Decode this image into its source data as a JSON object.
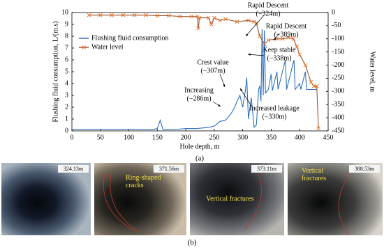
{
  "chart_data": {
    "type": "line",
    "x_label": "Hole depth, m",
    "y_label": "Flushing fluid consumption, L/(m.s)",
    "y2_label": "Water level, m",
    "xlim": [
      0,
      450
    ],
    "xticks": [
      0,
      50,
      100,
      150,
      200,
      250,
      300,
      350,
      400,
      450
    ],
    "ylim": [
      0,
      10
    ],
    "yticks": [
      0,
      1,
      2,
      3,
      4,
      5,
      6,
      7,
      8,
      9,
      10
    ],
    "y2lim": [
      -450,
      0
    ],
    "y2ticks": [
      0,
      -50,
      -100,
      -150,
      -200,
      -250,
      -300,
      -350,
      -400,
      -450
    ],
    "legend": "upper left",
    "series": [
      {
        "name": "Flushing fluid consumption",
        "color": "#2e6fc0",
        "marker": "none",
        "x": [
          0,
          20,
          40,
          60,
          80,
          100,
          120,
          140,
          150,
          155,
          160,
          180,
          200,
          220,
          240,
          250,
          260,
          270,
          280,
          286,
          290,
          295,
          300,
          305,
          307,
          310,
          315,
          320,
          324,
          328,
          330,
          332,
          334,
          336,
          338,
          340,
          345,
          350,
          352,
          360,
          362,
          375,
          377,
          390,
          392,
          400,
          402,
          410,
          412,
          430
        ],
        "values": [
          0.1,
          0.1,
          0.1,
          0.1,
          0.1,
          0.1,
          0.1,
          0.1,
          0.2,
          0.9,
          0.1,
          0.1,
          0.2,
          0.2,
          0.3,
          0.4,
          0.8,
          0.9,
          1.5,
          2.0,
          2.5,
          3.0,
          2.0,
          3.5,
          4.5,
          1.0,
          2.8,
          0.3,
          0.5,
          3.5,
          3.8,
          2.5,
          8.6,
          3.0,
          8.5,
          3.2,
          3.5,
          4.8,
          3.4,
          5.0,
          3.5,
          6.0,
          3.5,
          6.0,
          3.5,
          4.0,
          3.5,
          5.0,
          3.5,
          3.5
        ]
      },
      {
        "name": "Water level",
        "color": "#a0522d",
        "marker_color": "#e8742a",
        "marker": "x",
        "axis": "y2",
        "x": [
          30,
          50,
          70,
          90,
          110,
          130,
          150,
          170,
          190,
          210,
          220,
          222,
          224,
          240,
          245,
          250,
          260,
          270,
          290,
          310,
          320,
          324,
          330,
          338,
          345,
          360,
          370,
          380,
          389,
          395,
          400,
          410,
          420,
          425,
          430,
          433
        ],
        "values": [
          -10,
          -10,
          -10,
          -10,
          -10,
          -10,
          -12,
          -12,
          -15,
          -15,
          -15,
          -60,
          -20,
          -20,
          -45,
          -20,
          -30,
          -25,
          -35,
          -30,
          -35,
          -40,
          -90,
          -120,
          -105,
          -100,
          -100,
          -95,
          -100,
          -130,
          -160,
          -200,
          -265,
          -280,
          -280,
          -440
        ]
      }
    ],
    "annotations": [
      {
        "lines": [
          "Rapid Descent",
          "(−324m)"
        ]
      },
      {
        "lines": [
          "Keep stable",
          "(−338m)"
        ]
      },
      {
        "lines": [
          "Rapid Descent",
          "(−389m)"
        ]
      },
      {
        "lines": [
          "Crest value",
          "(−307m)"
        ]
      },
      {
        "lines": [
          "Increasing",
          "(−286m)"
        ]
      },
      {
        "lines": [
          "Increased leakage",
          "(−330m)"
        ]
      }
    ],
    "panel_label": "(a)"
  },
  "figure": {
    "panel_label": "(b)",
    "photos": [
      {
        "depth": "324.13m"
      },
      {
        "depth": "371.56m",
        "caption": "Ring-shaped cracks"
      },
      {
        "depth": "373.11m",
        "caption": "Vertical fractures"
      },
      {
        "depth": "388.53m",
        "caption": "Vertical fractures"
      }
    ]
  }
}
